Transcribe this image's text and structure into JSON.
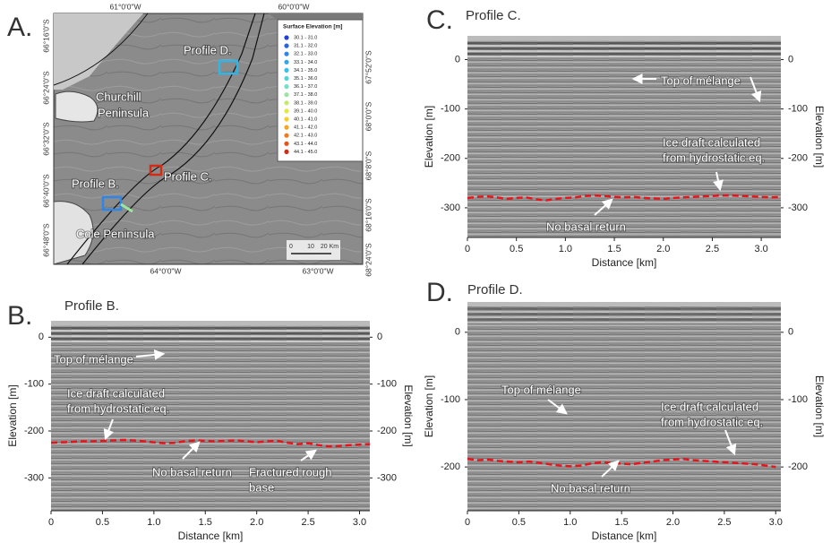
{
  "panel_labels": [
    "A.",
    "B.",
    "C.",
    "D."
  ],
  "map": {
    "lon_top": [
      "61°0'0\"W",
      "60°0'0\"W"
    ],
    "lon_bottom": [
      "64°0'0\"W",
      "63°0'0\"W"
    ],
    "lat_left": [
      "66°16'0\"S",
      "66°24'0\"S",
      "66°32'0\"S",
      "66°40'0\"S",
      "66°48'0\"S"
    ],
    "lat_right": [
      "67°52'0\"S",
      "68°0'0\"S",
      "68°8'0\"S",
      "68°16'0\"S",
      "68°24'0\"S"
    ],
    "places": [
      [
        "Profile D."
      ],
      [
        "Churchill",
        "Peninsula"
      ],
      [
        "Profile C."
      ],
      [
        "Profile B."
      ],
      [
        "Cole Peninsula"
      ]
    ],
    "legend": {
      "title": "Surface Elevation [m]",
      "items": [
        "30.1 - 31.0",
        "31.1 - 32.0",
        "32.1 - 33.0",
        "33.1 - 34.0",
        "34.1 - 35.0",
        "35.1 - 36.0",
        "36.1 - 37.0",
        "37.1 - 38.0",
        "38.1 - 39.0",
        "39.1 - 40.0",
        "40.1 - 41.0",
        "41.1 - 42.0",
        "42.1 - 43.0",
        "43.1 - 44.0",
        "44.1 - 45.0"
      ],
      "colors": [
        "#1f3fd6",
        "#2a62e0",
        "#2f86e6",
        "#32a6e8",
        "#34c2e8",
        "#4fd6dc",
        "#72e0c4",
        "#9ae6a0",
        "#c2ea6c",
        "#e6e63c",
        "#f5cf2a",
        "#f5a623",
        "#ee7c1e",
        "#e45418",
        "#d42b14"
      ]
    },
    "scale": [
      "0",
      "10",
      "20 Km"
    ]
  },
  "chart_data": [
    {
      "type": "line",
      "title": "Profile B.",
      "x_label": "Distance [km]",
      "y_label": "Elevation [m]",
      "y2_label": "Elevation [m]",
      "xlim": [
        0,
        3.1
      ],
      "ylim": [
        -370,
        35
      ],
      "xticks": [
        0,
        0.5,
        {
          "value": 1,
          "label": "1.0"
        },
        1.5,
        {
          "value": 2,
          "label": "2.0"
        },
        2.5,
        {
          "value": 3,
          "label": "3.0"
        }
      ],
      "yticks": [
        0,
        -100,
        -200,
        -300
      ],
      "y2ticks": [
        0,
        -100,
        -200,
        -300
      ],
      "x": [
        0,
        0.1,
        0.2,
        0.3,
        0.4,
        0.5,
        0.6,
        0.7,
        0.8,
        0.9,
        1,
        1.1,
        1.2,
        1.3,
        1.4,
        1.5,
        1.6,
        1.7,
        1.8,
        1.9,
        2,
        2.1,
        2.2,
        2.3,
        2.4,
        2.5,
        2.6,
        2.7,
        2.8,
        2.9,
        3,
        3.1
      ],
      "series": [
        {
          "color": "#e8141a",
          "values": [
            -225,
            -224,
            -223,
            -222,
            -222,
            -221,
            -220,
            -219,
            -220,
            -222,
            -224,
            -226,
            -225,
            -222,
            -220,
            -221,
            -222,
            -221,
            -220,
            -222,
            -224,
            -222,
            -221,
            -225,
            -228,
            -226,
            -230,
            -233,
            -232,
            -230,
            -229,
            -228
          ]
        }
      ],
      "annotations": [
        [
          "Top of mélange"
        ],
        [
          "Ice draft calculated",
          "from hydrostatic eq."
        ],
        [
          "No basal return"
        ],
        [
          "Fractured rough",
          "base"
        ]
      ]
    },
    {
      "type": "line",
      "title": "Profile C.",
      "x_label": "Distance [km]",
      "y_label": "Elevation [m]",
      "y2_label": "Elevation [m]",
      "xlim": [
        0,
        3.2
      ],
      "ylim": [
        -360,
        48
      ],
      "xticks": [
        0,
        0.5,
        {
          "value": 1,
          "label": "1.0"
        },
        1.5,
        {
          "value": 2,
          "label": "2.0"
        },
        2.5,
        {
          "value": 3,
          "label": "3.0"
        }
      ],
      "yticks": [
        0,
        -100,
        -200,
        -300
      ],
      "y2ticks": [
        0,
        -100,
        -200,
        -300
      ],
      "x": [
        0,
        0.1,
        0.2,
        0.3,
        0.4,
        0.5,
        0.6,
        0.7,
        0.8,
        0.9,
        1,
        1.1,
        1.2,
        1.3,
        1.4,
        1.5,
        1.6,
        1.7,
        1.8,
        1.9,
        2,
        2.1,
        2.2,
        2.3,
        2.4,
        2.5,
        2.6,
        2.7,
        2.8,
        2.9,
        3,
        3.1,
        3.2
      ],
      "series": [
        {
          "color": "#e8141a",
          "values": [
            -280,
            -278,
            -277,
            -279,
            -282,
            -280,
            -279,
            -283,
            -285,
            -282,
            -280,
            -279,
            -276,
            -275,
            -276,
            -278,
            -279,
            -278,
            -280,
            -281,
            -282,
            -280,
            -279,
            -278,
            -277,
            -276,
            -275,
            -275,
            -276,
            -277,
            -278,
            -279,
            -278
          ]
        }
      ],
      "annotations": [
        [
          "Top of mélange"
        ],
        [
          "Ice draft calculated",
          "from hydrostatic eq."
        ],
        [
          "No basal return"
        ]
      ]
    },
    {
      "type": "line",
      "title": "Profile D.",
      "x_label": "Distance [km]",
      "y_label": "Elevation [m]",
      "y2_label": "Elevation [m]",
      "xlim": [
        0,
        3.05
      ],
      "ylim": [
        -265,
        45
      ],
      "xticks": [
        0,
        0.5,
        {
          "value": 1,
          "label": "1.0"
        },
        1.5,
        {
          "value": 2,
          "label": "2.0"
        },
        2.5,
        {
          "value": 3,
          "label": "3.0"
        }
      ],
      "yticks": [
        0,
        -100,
        -200
      ],
      "y2ticks": [
        0,
        -100,
        -200
      ],
      "x": [
        0,
        0.1,
        0.2,
        0.3,
        0.4,
        0.5,
        0.6,
        0.7,
        0.8,
        0.9,
        1,
        1.1,
        1.2,
        1.3,
        1.4,
        1.5,
        1.6,
        1.7,
        1.8,
        1.9,
        2,
        2.1,
        2.2,
        2.3,
        2.4,
        2.5,
        2.6,
        2.7,
        2.8,
        2.9,
        3
      ],
      "series": [
        {
          "color": "#e8141a",
          "values": [
            -188,
            -190,
            -189,
            -191,
            -192,
            -193,
            -192,
            -194,
            -196,
            -198,
            -199,
            -198,
            -195,
            -193,
            -194,
            -195,
            -196,
            -194,
            -192,
            -190,
            -189,
            -188,
            -190,
            -191,
            -192,
            -193,
            -194,
            -195,
            -196,
            -198,
            -200
          ]
        }
      ],
      "annotations": [
        [
          "Top of mélange"
        ],
        [
          "Ice draft calculated",
          "from hydrostatic eq."
        ],
        [
          "No basal return"
        ]
      ]
    }
  ]
}
